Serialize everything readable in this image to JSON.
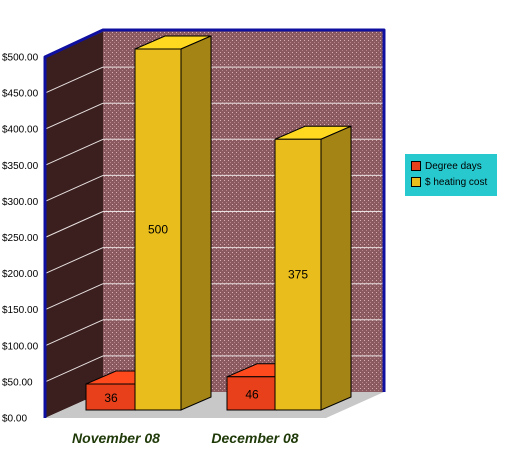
{
  "chart_data": {
    "type": "bar",
    "categories": [
      "November 08",
      "December 08"
    ],
    "series": [
      {
        "name": "Degree days",
        "values": [
          36,
          46
        ],
        "color": "#e8401a"
      },
      {
        "name": "$ heating cost",
        "values": [
          500,
          375
        ],
        "color": "#e9bd1c"
      }
    ],
    "yticks": [
      "$0.00",
      "$50.00",
      "$100.00",
      "$150.00",
      "$200.00",
      "$250.00",
      "$300.00",
      "$350.00",
      "$400.00",
      "$450.00",
      "$500.00"
    ],
    "ylim": [
      0,
      500
    ],
    "grid": true,
    "legend_position": "right",
    "colors": {
      "back_wall": "#8a5a60",
      "side_wall": "#3a1f1e",
      "floor": "#c8c8c8",
      "frame": "#1010a0",
      "legend_background": "#27c9cf"
    }
  }
}
